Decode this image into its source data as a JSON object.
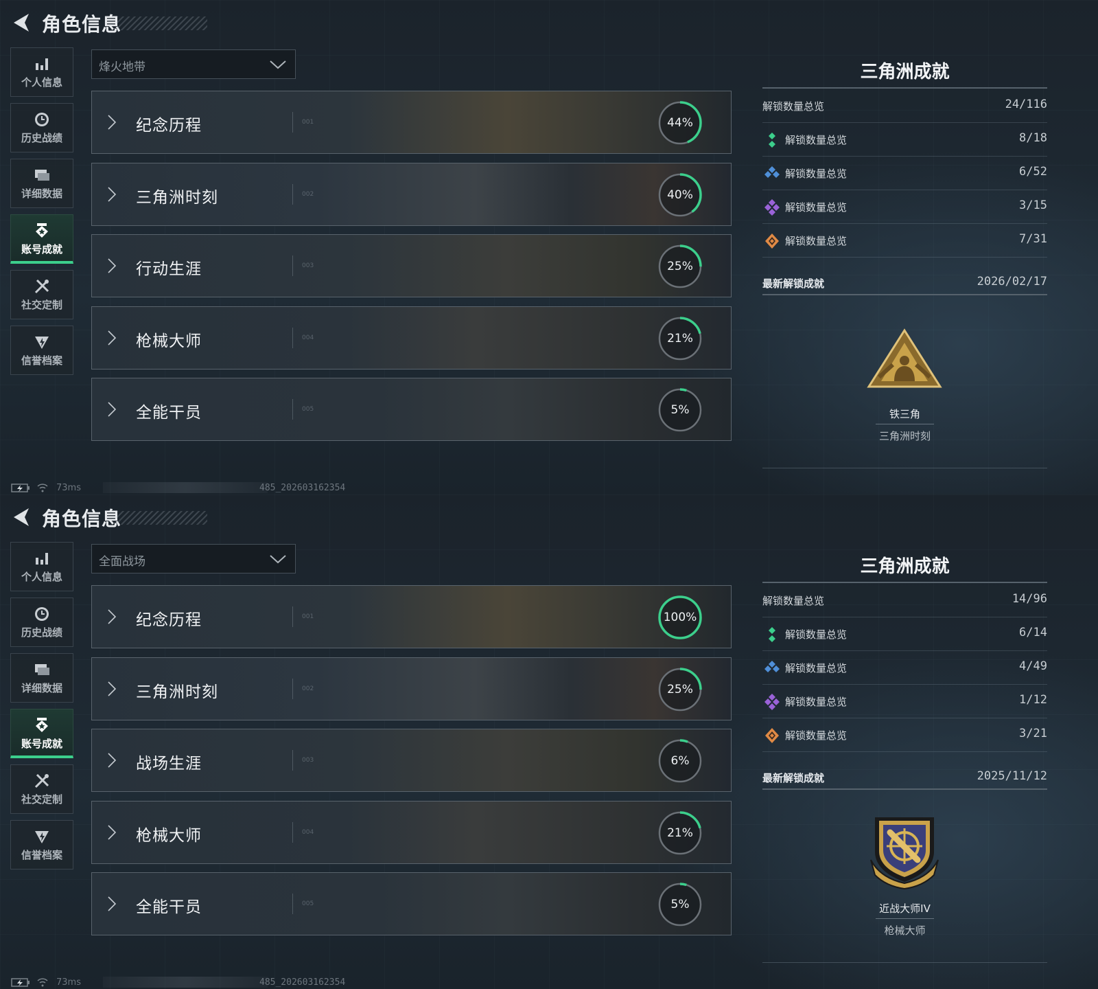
{
  "colors": {
    "accent": "#3ccf8c",
    "ring_track": "#6b7177",
    "gold": "#c9a24a"
  },
  "panels": [
    {
      "header": {
        "title": "角色信息",
        "back_icon": "back-arrow-icon"
      },
      "sidebar": [
        {
          "label": "个人信息",
          "icon": "bar-chart-icon"
        },
        {
          "label": "历史战绩",
          "icon": "history-clock-icon"
        },
        {
          "label": "详细数据",
          "icon": "folder-cards-icon"
        },
        {
          "label": "账号成就",
          "icon": "achievement-badge-icon",
          "active": true
        },
        {
          "label": "社交定制",
          "icon": "tools-icon"
        },
        {
          "label": "信誉档案",
          "icon": "credit-shield-icon"
        }
      ],
      "mode_select": {
        "value": "烽火地带"
      },
      "categories": [
        {
          "name": "纪念历程",
          "index": "001",
          "percent": 44
        },
        {
          "name": "三角洲时刻",
          "index": "002",
          "percent": 40
        },
        {
          "name": "行动生涯",
          "index": "003",
          "percent": 25
        },
        {
          "name": "枪械大师",
          "index": "004",
          "percent": 21
        },
        {
          "name": "全能干员",
          "index": "005",
          "percent": 5
        }
      ],
      "summary": {
        "title": "三角洲成就",
        "total_label": "解锁数量总览",
        "total_value": "24/116",
        "tiers": [
          {
            "label": "解锁数量总览",
            "value": "8/18",
            "icon": "green-tier-icon",
            "color": "#3ccf8c"
          },
          {
            "label": "解锁数量总览",
            "value": "6/52",
            "icon": "blue-tier-icon",
            "color": "#4f8fd8"
          },
          {
            "label": "解锁数量总览",
            "value": "3/15",
            "icon": "purple-tier-icon",
            "color": "#9a62d8"
          },
          {
            "label": "解锁数量总览",
            "value": "7/31",
            "icon": "orange-tier-icon",
            "color": "#e08a45"
          }
        ],
        "latest_label": "最新解锁成就",
        "latest_date": "2026/02/17",
        "latest_name": "铁三角",
        "latest_category": "三角洲时刻",
        "latest_emblem": "triangle-emblem"
      },
      "status": {
        "ping": "73ms",
        "build": "485_202603162354"
      }
    },
    {
      "header": {
        "title": "角色信息",
        "back_icon": "back-arrow-icon"
      },
      "sidebar": [
        {
          "label": "个人信息",
          "icon": "bar-chart-icon"
        },
        {
          "label": "历史战绩",
          "icon": "history-clock-icon"
        },
        {
          "label": "详细数据",
          "icon": "folder-cards-icon"
        },
        {
          "label": "账号成就",
          "icon": "achievement-badge-icon",
          "active": true
        },
        {
          "label": "社交定制",
          "icon": "tools-icon"
        },
        {
          "label": "信誉档案",
          "icon": "credit-shield-icon"
        }
      ],
      "mode_select": {
        "value": "全面战场"
      },
      "categories": [
        {
          "name": "纪念历程",
          "index": "001",
          "percent": 100
        },
        {
          "name": "三角洲时刻",
          "index": "002",
          "percent": 25
        },
        {
          "name": "战场生涯",
          "index": "003",
          "percent": 6
        },
        {
          "name": "枪械大师",
          "index": "004",
          "percent": 21
        },
        {
          "name": "全能干员",
          "index": "005",
          "percent": 5
        }
      ],
      "summary": {
        "title": "三角洲成就",
        "total_label": "解锁数量总览",
        "total_value": "14/96",
        "tiers": [
          {
            "label": "解锁数量总览",
            "value": "6/14",
            "icon": "green-tier-icon",
            "color": "#3ccf8c"
          },
          {
            "label": "解锁数量总览",
            "value": "4/49",
            "icon": "blue-tier-icon",
            "color": "#4f8fd8"
          },
          {
            "label": "解锁数量总览",
            "value": "1/12",
            "icon": "purple-tier-icon",
            "color": "#9a62d8"
          },
          {
            "label": "解锁数量总览",
            "value": "3/21",
            "icon": "orange-tier-icon",
            "color": "#e08a45"
          }
        ],
        "latest_label": "最新解锁成就",
        "latest_date": "2025/11/12",
        "latest_name": "近战大师IV",
        "latest_category": "枪械大师",
        "latest_emblem": "shield-emblem"
      },
      "status": {
        "ping": "73ms",
        "build": "485_202603162354"
      }
    }
  ]
}
